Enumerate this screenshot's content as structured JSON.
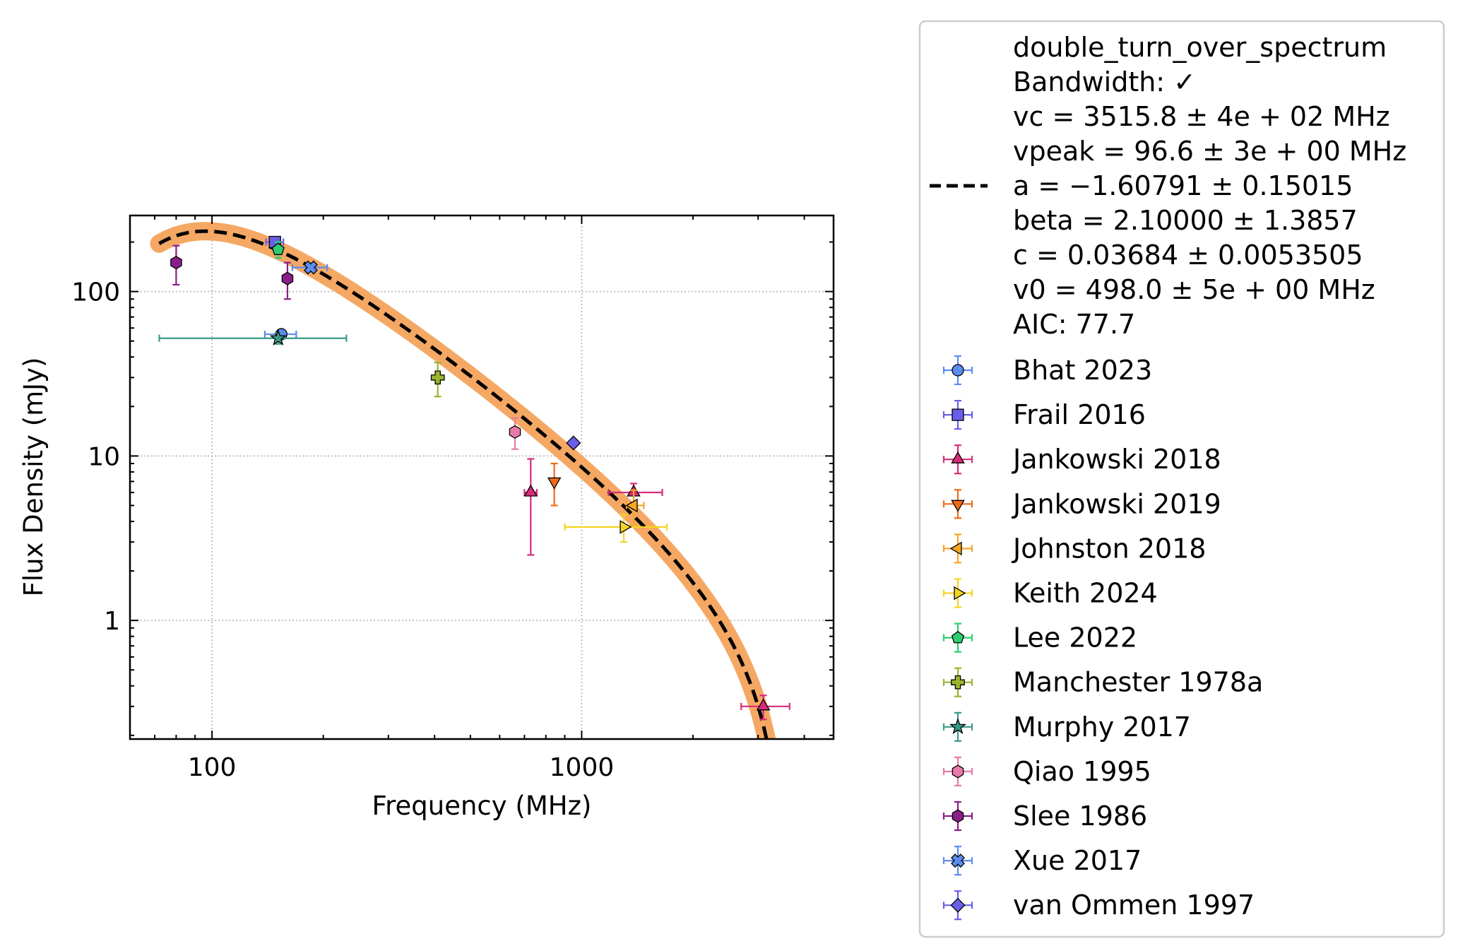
{
  "chart_data": {
    "type": "scatter",
    "xlabel": "Frequency (MHz)",
    "ylabel": "Flux Density (mJy)",
    "xscale": "log",
    "yscale": "log",
    "xlim": [
      60,
      4800
    ],
    "ylim": [
      0.19,
      290
    ],
    "grid": true,
    "legend_position": "outside-right",
    "x_ticks": [
      {
        "value": 100,
        "label": "100"
      },
      {
        "value": 1000,
        "label": "1000"
      }
    ],
    "y_ticks": [
      {
        "value": 1,
        "label": "1"
      },
      {
        "value": 10,
        "label": "10"
      },
      {
        "value": 100,
        "label": "100"
      }
    ],
    "fit": {
      "model_name": "double_turn_over_spectrum",
      "line_style": "dashed",
      "line_color": "#000000",
      "band_color": "#f5a864",
      "legend_lines": [
        "double_turn_over_spectrum",
        "Bandwidth: ✓",
        "vc = 3515.8 ± 4e + 02 MHz",
        "vpeak = 96.6 ± 3e + 00 MHz",
        "a = −1.60791 ± 0.15015",
        "beta = 2.10000 ± 1.3857",
        "c = 0.03684 ± 0.0053505",
        "v0 = 498.0 ± 5e + 00 MHz",
        "AIC: 77.7"
      ],
      "params": {
        "vc": 3515.8,
        "vpeak": 96.6,
        "a": -1.60791,
        "beta": 2.1,
        "c": 0.03684,
        "v0": 498.0
      },
      "x_range": [
        72,
        3600
      ]
    },
    "series": [
      {
        "name": "Bhat 2023",
        "color": "#5b8def",
        "marker": "circle",
        "points": [
          {
            "x": 154,
            "y": 55,
            "xerr": [
              15,
              15
            ],
            "yerr": [
              3,
              3
            ]
          }
        ]
      },
      {
        "name": "Frail 2016",
        "color": "#6a5ee8",
        "marker": "square",
        "points": [
          {
            "x": 148,
            "y": 200,
            "xerr": [
              8,
              8
            ],
            "yerr": [
              10,
              10
            ]
          }
        ]
      },
      {
        "name": "Jankowski 2018",
        "color": "#d62c7a",
        "marker": "triangle-up",
        "points": [
          {
            "x": 728,
            "y": 6,
            "xerr": [
              28,
              28
            ],
            "yerr": [
              3.5,
              3.6
            ]
          },
          {
            "x": 1382,
            "y": 6,
            "xerr": [
              200,
              270
            ],
            "yerr": [
              0.8,
              0.8
            ]
          },
          {
            "x": 3100,
            "y": 0.3,
            "xerr": [
              400,
              550
            ],
            "yerr": [
              0.05,
              0.05
            ]
          }
        ]
      },
      {
        "name": "Jankowski 2019",
        "color": "#f06a1a",
        "marker": "triangle-down",
        "points": [
          {
            "x": 843,
            "y": 7,
            "xerr": [
              0,
              0
            ],
            "yerr": [
              2,
              2
            ]
          }
        ]
      },
      {
        "name": "Johnston 2018",
        "color": "#f5a623",
        "marker": "triangle-left",
        "points": [
          {
            "x": 1382,
            "y": 5,
            "xerr": [
              60,
              90
            ],
            "yerr": [
              1.2,
              1.2
            ]
          }
        ]
      },
      {
        "name": "Keith 2024",
        "color": "#f5d423",
        "marker": "triangle-right",
        "points": [
          {
            "x": 1300,
            "y": 3.7,
            "xerr": [
              400,
              400
            ],
            "yerr": [
              0.7,
              0.7
            ]
          }
        ]
      },
      {
        "name": "Lee 2022",
        "color": "#2ecc71",
        "marker": "pentagon",
        "points": [
          {
            "x": 151,
            "y": 180,
            "xerr": [
              0,
              0
            ],
            "yerr": [
              20,
              20
            ]
          }
        ]
      },
      {
        "name": "Manchester 1978a",
        "color": "#9ab52e",
        "marker": "plus",
        "points": [
          {
            "x": 408,
            "y": 30,
            "xerr": [
              0,
              0
            ],
            "yerr": [
              7,
              7
            ]
          }
        ]
      },
      {
        "name": "Murphy 2017",
        "color": "#3a9a8a",
        "marker": "star",
        "points": [
          {
            "x": 151,
            "y": 52,
            "xerr": [
              79,
              80
            ],
            "yerr": [
              4,
              4
            ]
          }
        ]
      },
      {
        "name": "Qiao 1995",
        "color": "#e87aaa",
        "marker": "hexagon",
        "points": [
          {
            "x": 660,
            "y": 14,
            "xerr": [
              0,
              0
            ],
            "yerr": [
              3,
              3
            ]
          }
        ]
      },
      {
        "name": "Slee 1986",
        "color": "#8a1e8a",
        "marker": "hexagon",
        "points": [
          {
            "x": 80,
            "y": 150,
            "xerr": [
              0,
              0
            ],
            "yerr": [
              40,
              40
            ]
          },
          {
            "x": 160,
            "y": 120,
            "xerr": [
              0,
              0
            ],
            "yerr": [
              30,
              30
            ]
          }
        ]
      },
      {
        "name": "Xue 2017",
        "color": "#5b8def",
        "marker": "x-filled",
        "points": [
          {
            "x": 185,
            "y": 140,
            "xerr": [
              20,
              20
            ],
            "yerr": [
              8,
              8
            ]
          }
        ]
      },
      {
        "name": "van Ommen 1997",
        "color": "#6a5ee8",
        "marker": "diamond",
        "points": [
          {
            "x": 950,
            "y": 12,
            "xerr": [
              0,
              0
            ],
            "yerr": [
              0.6,
              0.6
            ]
          }
        ]
      }
    ]
  }
}
